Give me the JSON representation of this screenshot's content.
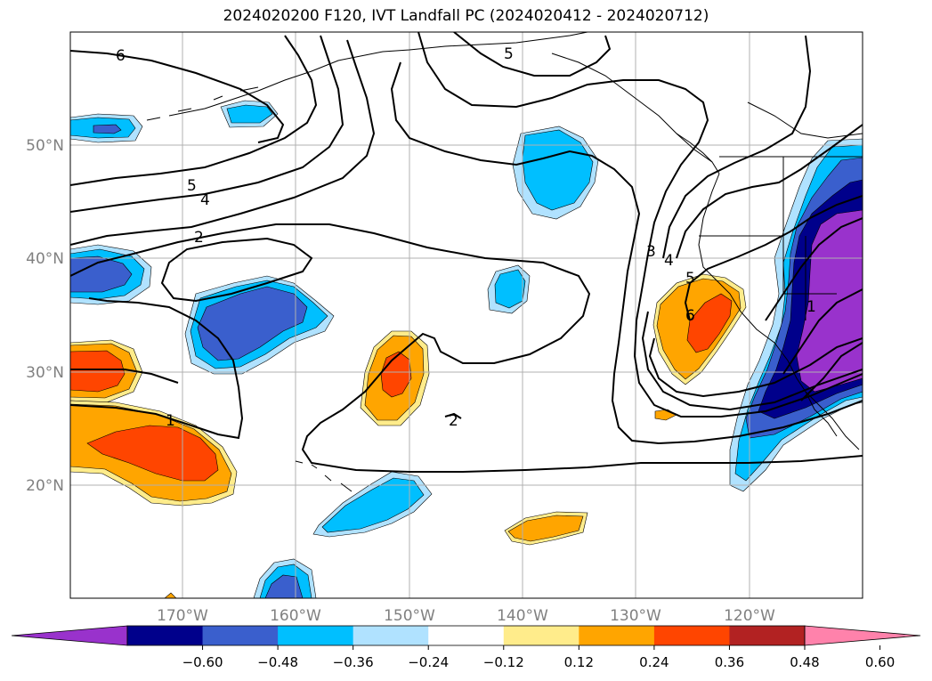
{
  "title": "2024020200 F120, IVT Landfall PC (2024020412 - 2024020712)",
  "map": {
    "lon_ticks": [
      "170°W",
      "160°W",
      "150°W",
      "140°W",
      "130°W",
      "120°W"
    ],
    "lat_ticks": [
      "50°N",
      "40°N",
      "30°N",
      "20°N"
    ],
    "contour_labels": [
      "6",
      "5",
      "4",
      "2",
      "1",
      "5",
      "3",
      "4",
      "5",
      "6",
      "2",
      "1"
    ]
  },
  "colorbar": {
    "ticks": [
      "−0.60",
      "−0.48",
      "−0.36",
      "−0.24",
      "−0.12",
      "0.12",
      "0.24",
      "0.36",
      "0.48",
      "0.60"
    ],
    "colors": [
      "#9932CC",
      "#00008B",
      "#3A5FCD",
      "#00BFFF",
      "#B0E2FF",
      "#FFFFFF",
      "#FFEC8B",
      "#FFA500",
      "#FF4500",
      "#B22222",
      "#FF82AB"
    ]
  },
  "legend_colors": {
    "purple": "#9932CC",
    "navy": "#00008B",
    "royal": "#3A5FCD",
    "sky": "#00BFFF",
    "pale_blue": "#B0E2FF",
    "pale_yellow": "#FFEC8B",
    "orange": "#FFA500",
    "red_orange": "#FF4500"
  }
}
